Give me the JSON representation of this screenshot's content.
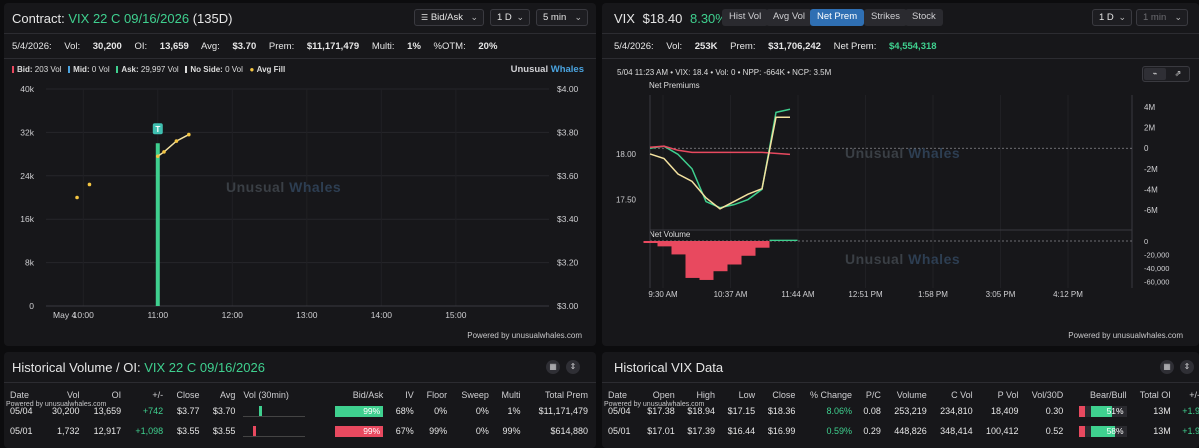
{
  "left": {
    "title_prefix": "Contract:",
    "title_contract": "VIX 22 C 09/16/2026",
    "title_dte": "(135D)",
    "dropdowns": {
      "side": "Bid/Ask",
      "period": "1 D",
      "interval": "5 min"
    },
    "stats": {
      "date": "5/4/2026:",
      "vol_label": "Vol:",
      "vol": "30,200",
      "oi_label": "OI:",
      "oi": "13,659",
      "avg_label": "Avg:",
      "avg": "$3.70",
      "prem_label": "Prem:",
      "prem": "$11,171,479",
      "multi_label": "Multi:",
      "multi": "1%",
      "otm_label": "%OTM:",
      "otm": "20%"
    },
    "legend": {
      "bid": "Bid:",
      "bid_val": "203 Vol",
      "mid": "Mid:",
      "mid_val": "0 Vol",
      "ask": "Ask:",
      "ask_val": "29,997 Vol",
      "noside": "No Side:",
      "noside_val": "0 Vol",
      "avgfill": "Avg Fill"
    },
    "logo": {
      "a": "Unusual",
      "b": "Whales"
    },
    "watermark": {
      "a": "Unusual",
      "b": "Whales"
    },
    "powered": "Powered by unusualwhales.com",
    "chart_data": {
      "type": "bar",
      "x_ticks": [
        "May 4",
        "10:00",
        "11:00",
        "12:00",
        "13:00",
        "14:00",
        "15:00"
      ],
      "y_left_ticks": [
        "40k",
        "32k",
        "24k",
        "16k",
        "8k",
        "0"
      ],
      "y_right_ticks": [
        "$4.00",
        "$3.80",
        "$3.60",
        "$3.40",
        "$3.20",
        "$3.00"
      ],
      "volume_bars": [
        {
          "time": "11:00",
          "value": 30000
        }
      ],
      "avg_fill_points": [
        {
          "time": "09:55",
          "price": 3.5
        },
        {
          "time": "10:05",
          "price": 3.56
        },
        {
          "time": "11:00",
          "price": 3.69
        },
        {
          "time": "11:05",
          "price": 3.71
        },
        {
          "time": "11:15",
          "price": 3.76
        },
        {
          "time": "11:25",
          "price": 3.79
        }
      ],
      "marker": "T",
      "ylim_left": [
        0,
        40000
      ],
      "ylim_right": [
        3.0,
        4.0
      ]
    }
  },
  "right": {
    "title": "VIX",
    "price": "$18.40",
    "change": "8.30%",
    "tabs": [
      "Hist Vol",
      "Avg Vol",
      "Net Prem",
      "Strikes",
      "Stock"
    ],
    "active_tab": "Net Prem",
    "dropdowns": {
      "period": "1 D",
      "interval": "1 min"
    },
    "stats": {
      "date": "5/4/2026:",
      "vol_label": "Vol:",
      "vol": "253K",
      "prem_label": "Prem:",
      "prem": "$31,706,242",
      "netprem_label": "Net Prem:",
      "netprem": "$4,554,318"
    },
    "tooltip": "5/04  11:23 AM  •  VIX: 18.4  •  Vol: 0  •  NPP: -664K  •  NCP: 3.5M",
    "net_premiums_label": "Net Premiums",
    "net_volume_label": "Net Volume",
    "watermark": {
      "a": "Unusual",
      "b": "Whales"
    },
    "powered": "Powered by unusualwhales.com",
    "chart_data": {
      "type": "line",
      "x_ticks": [
        "9:30 AM",
        "10:37 AM",
        "11:44 AM",
        "12:51 PM",
        "1:58 PM",
        "3:05 PM",
        "4:12 PM"
      ],
      "price_ticks": [
        "18.00",
        "17.50"
      ],
      "prem_ticks": [
        "4M",
        "2M",
        "0",
        "-2M",
        "-4M",
        "-6M"
      ],
      "vol_ticks": [
        "0",
        "-20,000",
        "-40,000",
        "-60,000"
      ],
      "series": [
        {
          "values": [
            0.0,
            0.2,
            -0.6,
            -2.0,
            -5.2,
            -5.8,
            -5.5,
            -5.0,
            -4.0,
            3.5,
            3.8
          ]
        },
        {
          "values": [
            0.1,
            0.2,
            -0.2,
            -0.4,
            -0.4,
            -0.4,
            -0.4,
            -0.4,
            -0.4,
            -0.5,
            -0.6
          ]
        },
        {
          "values": [
            18.0,
            17.95,
            17.78,
            17.7,
            17.52,
            17.4,
            17.48,
            17.56,
            17.62,
            18.4,
            18.4
          ]
        }
      ],
      "net_volume": [
        -3000,
        -8000,
        -20000,
        -55000,
        -58000,
        -45000,
        -35000,
        -22000,
        -10000,
        2000,
        2000
      ]
    }
  },
  "bottom_left": {
    "title_prefix": "Historical Volume / OI:",
    "title_contract": "VIX 22 C 09/16/2026",
    "powered": "Powered by unusualwhales.com",
    "columns": [
      "Date",
      "Vol",
      "OI",
      "+/-",
      "Close",
      "Avg",
      "Vol (30min)",
      "Bid/Ask",
      "IV",
      "Floor",
      "Sweep",
      "Multi",
      "Total Prem"
    ],
    "rows": [
      {
        "date": "05/04",
        "vol": "30,200",
        "oi": "13,659",
        "chg": "+742",
        "close": "$3.77",
        "avg": "$3.70",
        "spark_pos": 0.25,
        "spark_color": "#3fd08f",
        "ba": "99%",
        "ba_color": "#3fd08f",
        "iv": "68%",
        "floor": "0%",
        "sweep": "0%",
        "multi": "1%",
        "total": "$11,171,479"
      },
      {
        "date": "05/01",
        "vol": "1,732",
        "oi": "12,917",
        "chg": "+1,098",
        "close": "$3.55",
        "avg": "$3.55",
        "spark_pos": 0.15,
        "spark_color": "#e8495f",
        "ba": "99%",
        "ba_color": "#e8495f",
        "iv": "67%",
        "floor": "99%",
        "sweep": "0%",
        "multi": "99%",
        "total": "$614,880"
      }
    ]
  },
  "bottom_right": {
    "title": "Historical VIX Data",
    "powered": "Powered by unusualwhales.com",
    "columns": [
      "Date",
      "Open",
      "High",
      "Low",
      "Close",
      "% Change",
      "P/C",
      "Volume",
      "C Vol",
      "P Vol",
      "Vol/30D",
      "Bear/Bull",
      "Total OI",
      "+/-"
    ],
    "rows": [
      {
        "date": "05/04",
        "open": "$17.38",
        "high": "$18.94",
        "low": "$17.15",
        "close": "$18.36",
        "pct": "8.06%",
        "pc": "0.08",
        "volume": "253,219",
        "cvol": "234,810",
        "pvol": "18,409",
        "v30": "0.30",
        "bull": "51%",
        "bull_frac": 0.51,
        "totaloi": "13M",
        "chg": "+1.9"
      },
      {
        "date": "05/01",
        "open": "$17.01",
        "high": "$17.39",
        "low": "$16.44",
        "close": "$16.99",
        "pct": "0.59%",
        "pc": "0.29",
        "volume": "448,826",
        "cvol": "348,414",
        "pvol": "100,412",
        "v30": "0.52",
        "bull": "58%",
        "bull_frac": 0.58,
        "totaloi": "13M",
        "chg": "+1.9"
      }
    ]
  }
}
